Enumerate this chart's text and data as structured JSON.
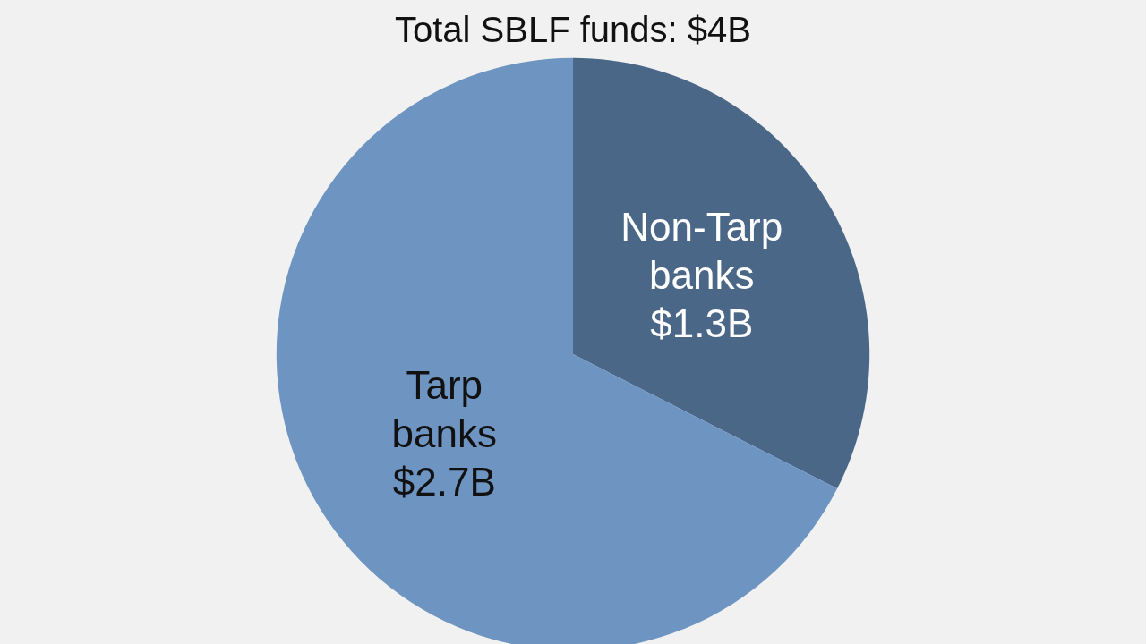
{
  "chart_data": {
    "type": "pie",
    "title": "Total SBLF funds: $4B",
    "categories": [
      "Non-Tarp banks",
      "Tarp banks"
    ],
    "values": [
      1.3,
      2.7
    ],
    "colors": [
      "#4b6788",
      "#6e95c2"
    ],
    "value_labels": [
      "$1.3B",
      "$2.7B"
    ],
    "legend": false
  }
}
